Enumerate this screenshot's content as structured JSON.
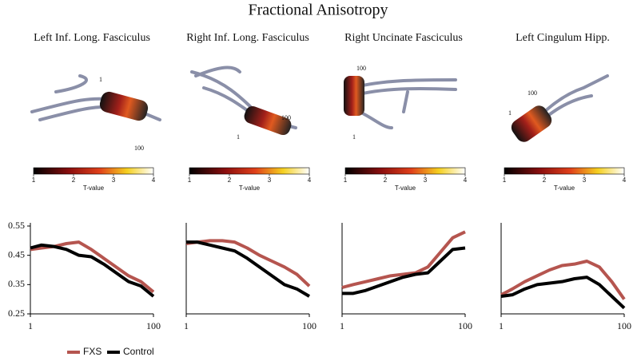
{
  "title": "Fractional Anisotropy",
  "chart_data": [
    {
      "type": "line",
      "title": "Left Inf. Long. Fasciculus",
      "annotations": [
        "1",
        "100"
      ],
      "colorbar": {
        "label": "T-value",
        "lim": [
          1,
          4
        ],
        "ticks": [
          1,
          2,
          3,
          4
        ]
      },
      "x": [
        1,
        10,
        20,
        30,
        40,
        50,
        60,
        70,
        80,
        90,
        100
      ],
      "series": [
        {
          "name": "FXS",
          "color": "#b5554f",
          "values": [
            0.47,
            0.475,
            0.48,
            0.49,
            0.495,
            0.47,
            0.44,
            0.41,
            0.38,
            0.36,
            0.325
          ]
        },
        {
          "name": "Control",
          "color": "#000000",
          "values": [
            0.475,
            0.485,
            0.48,
            0.47,
            0.45,
            0.445,
            0.42,
            0.39,
            0.36,
            0.345,
            0.31
          ]
        }
      ],
      "xlim": [
        1,
        100
      ],
      "xticks": [
        1,
        100
      ],
      "ylim": [
        0.25,
        0.55
      ],
      "yticks": [
        0.25,
        0.35,
        0.45,
        0.55
      ]
    },
    {
      "type": "line",
      "title": "Right Inf. Long. Fasciculus",
      "annotations": [
        "1",
        "100"
      ],
      "colorbar": {
        "label": "T-value",
        "lim": [
          1,
          4
        ],
        "ticks": [
          1,
          2,
          3,
          4
        ]
      },
      "x": [
        1,
        10,
        20,
        30,
        40,
        50,
        60,
        70,
        80,
        90,
        100
      ],
      "series": [
        {
          "name": "FXS",
          "color": "#b5554f",
          "values": [
            0.49,
            0.495,
            0.5,
            0.5,
            0.495,
            0.475,
            0.45,
            0.43,
            0.41,
            0.385,
            0.345
          ]
        },
        {
          "name": "Control",
          "color": "#000000",
          "values": [
            0.495,
            0.495,
            0.485,
            0.475,
            0.465,
            0.44,
            0.41,
            0.38,
            0.35,
            0.335,
            0.31
          ]
        }
      ],
      "xlim": [
        1,
        100
      ],
      "xticks": [
        1,
        100
      ],
      "ylim": [
        0.25,
        0.55
      ]
    },
    {
      "type": "line",
      "title": "Right Uncinate Fasciculus",
      "annotations": [
        "100",
        "1"
      ],
      "colorbar": {
        "label": "T-value",
        "lim": [
          1,
          4
        ],
        "ticks": [
          1,
          2,
          3,
          4
        ]
      },
      "x": [
        1,
        10,
        20,
        30,
        40,
        50,
        60,
        70,
        80,
        90,
        100
      ],
      "series": [
        {
          "name": "FXS",
          "color": "#b5554f",
          "values": [
            0.34,
            0.35,
            0.36,
            0.37,
            0.38,
            0.385,
            0.39,
            0.41,
            0.46,
            0.51,
            0.53
          ]
        },
        {
          "name": "Control",
          "color": "#000000",
          "values": [
            0.32,
            0.32,
            0.33,
            0.345,
            0.36,
            0.375,
            0.385,
            0.39,
            0.43,
            0.47,
            0.475
          ]
        }
      ],
      "xlim": [
        1,
        100
      ],
      "xticks": [
        1,
        100
      ],
      "ylim": [
        0.25,
        0.55
      ]
    },
    {
      "type": "line",
      "title": "Left Cingulum Hipp.",
      "annotations": [
        "100",
        "1"
      ],
      "colorbar": {
        "label": "T-value",
        "lim": [
          1,
          4
        ],
        "ticks": [
          1,
          2,
          3,
          4
        ]
      },
      "x": [
        1,
        10,
        20,
        30,
        40,
        50,
        60,
        70,
        80,
        90,
        100
      ],
      "series": [
        {
          "name": "FXS",
          "color": "#b5554f",
          "values": [
            0.315,
            0.335,
            0.36,
            0.38,
            0.4,
            0.415,
            0.42,
            0.43,
            0.41,
            0.36,
            0.3
          ]
        },
        {
          "name": "Control",
          "color": "#000000",
          "values": [
            0.31,
            0.315,
            0.335,
            0.35,
            0.355,
            0.36,
            0.37,
            0.375,
            0.35,
            0.31,
            0.27
          ]
        }
      ],
      "xlim": [
        1,
        100
      ],
      "xticks": [
        1,
        100
      ],
      "ylim": [
        0.25,
        0.55
      ]
    }
  ]
}
